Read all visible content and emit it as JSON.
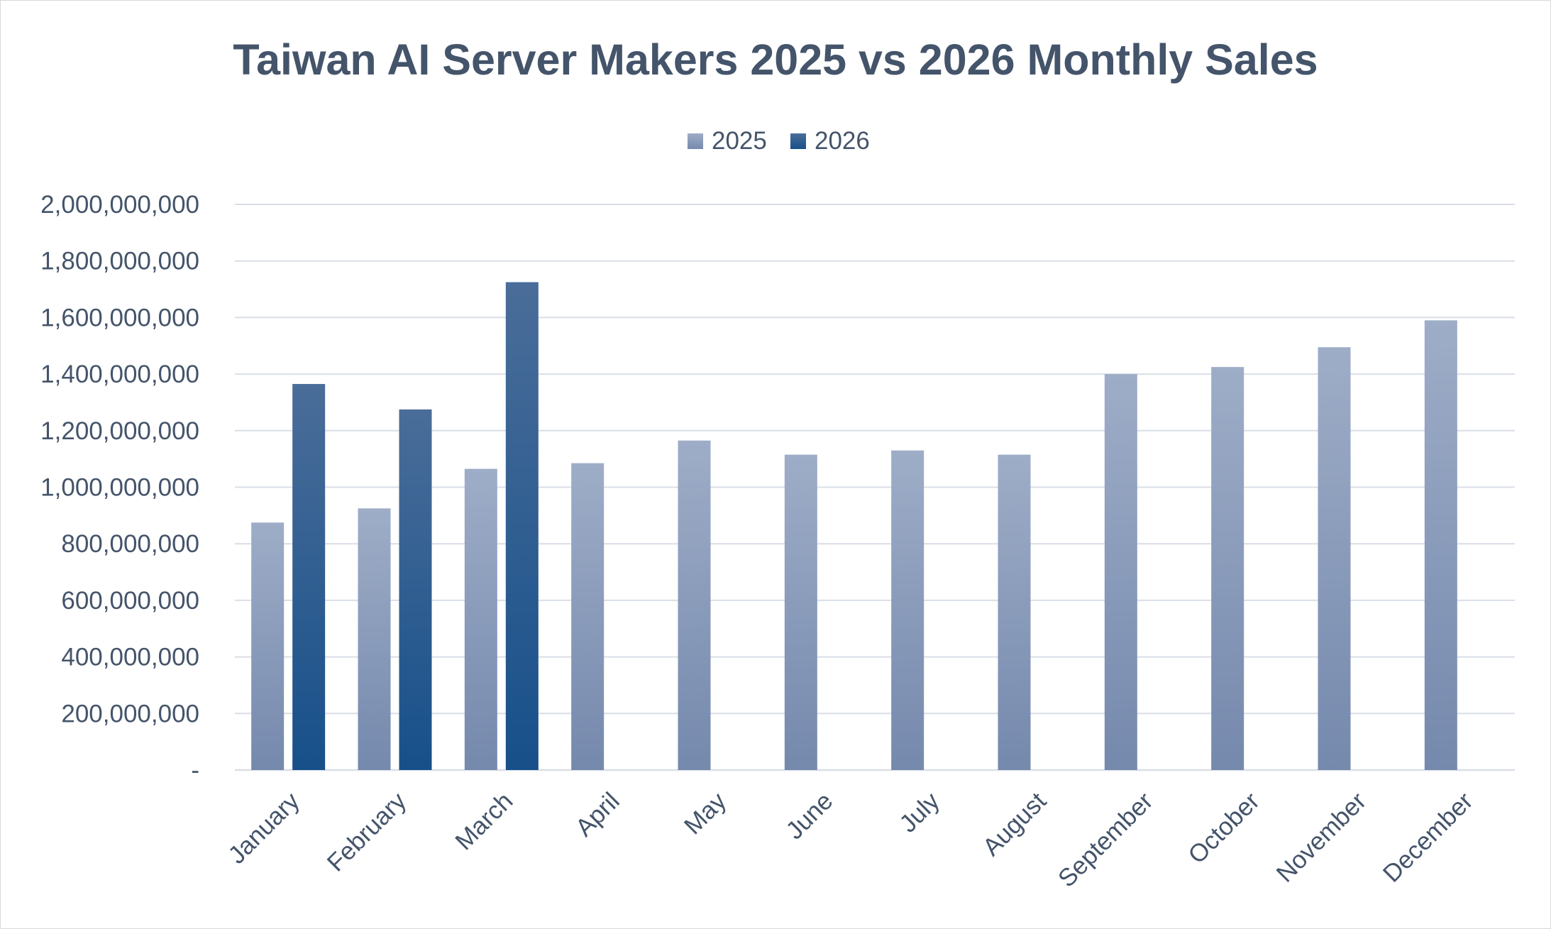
{
  "chart_data": {
    "type": "bar",
    "title": "Taiwan AI Server Makers 2025 vs 2026 Monthly Sales",
    "xlabel": "",
    "ylabel": "",
    "categories": [
      "January",
      "February",
      "March",
      "April",
      "May",
      "June",
      "July",
      "August",
      "September",
      "October",
      "November",
      "December"
    ],
    "series": [
      {
        "name": "2025",
        "values": [
          875000000,
          925000000,
          1065000000,
          1085000000,
          1165000000,
          1115000000,
          1130000000,
          1115000000,
          1400000000,
          1425000000,
          1495000000,
          1590000000
        ],
        "color": "#8497b9"
      },
      {
        "name": "2026",
        "values": [
          1365000000,
          1275000000,
          1725000000,
          null,
          null,
          null,
          null,
          null,
          null,
          null,
          null,
          null
        ],
        "color": "#2c5a8e"
      }
    ],
    "ylim": [
      0,
      2000000000
    ],
    "yticks": [
      0,
      200000000,
      400000000,
      600000000,
      800000000,
      1000000000,
      1200000000,
      1400000000,
      1600000000,
      1800000000,
      2000000000
    ],
    "ytick_labels": [
      "-",
      "200,000,000",
      "400,000,000",
      "600,000,000",
      "800,000,000",
      "1,000,000,000",
      "1,200,000,000",
      "1,400,000,000",
      "1,600,000,000",
      "1,800,000,000",
      "2,000,000,000"
    ],
    "grid": true,
    "legend_position": "top-center"
  }
}
